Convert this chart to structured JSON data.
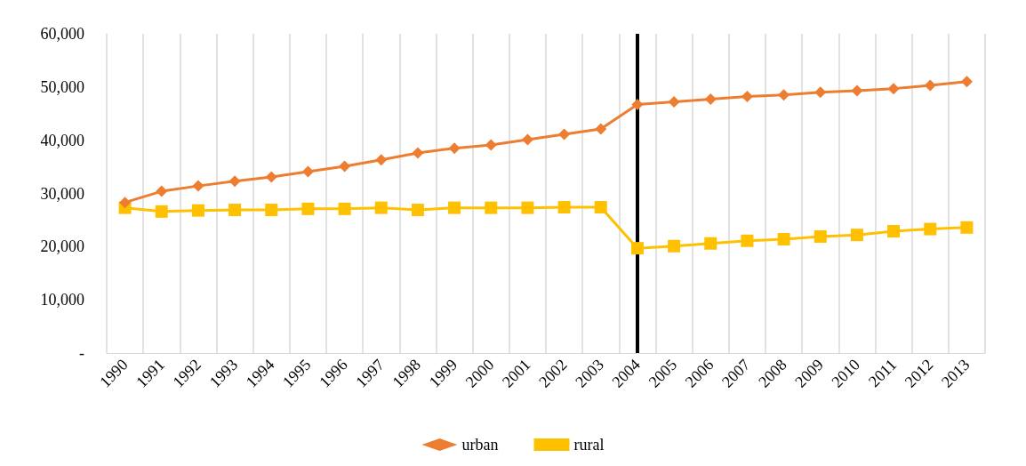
{
  "chart_data": {
    "type": "line",
    "categories": [
      "1990",
      "1991",
      "1992",
      "1993",
      "1994",
      "1995",
      "1996",
      "1997",
      "1998",
      "1999",
      "2000",
      "2001",
      "2002",
      "2003",
      "2004",
      "2005",
      "2006",
      "2007",
      "2008",
      "2009",
      "2010",
      "2011",
      "2012",
      "2013"
    ],
    "series": [
      {
        "name": "urban",
        "color": "#ed7d31",
        "marker": "diamond",
        "values": [
          28300,
          30400,
          31400,
          32300,
          33100,
          34100,
          35100,
          36300,
          37600,
          38500,
          39100,
          40100,
          41100,
          42100,
          46700,
          47200,
          47700,
          48200,
          48500,
          49000,
          49300,
          49700,
          50300,
          51000
        ]
      },
      {
        "name": "rural",
        "color": "#ffc000",
        "marker": "square",
        "values": [
          27300,
          26600,
          26800,
          26900,
          26900,
          27100,
          27100,
          27300,
          26900,
          27300,
          27300,
          27300,
          27400,
          27400,
          19700,
          20100,
          20600,
          21100,
          21400,
          21900,
          22200,
          22900,
          23300,
          23600
        ]
      }
    ],
    "ylim": [
      0,
      60000
    ],
    "yticks": [
      {
        "value": 0,
        "label": "-"
      },
      {
        "value": 10000,
        "label": "10,000"
      },
      {
        "value": 20000,
        "label": "20,000"
      },
      {
        "value": 30000,
        "label": "30,000"
      },
      {
        "value": 40000,
        "label": "40,000"
      },
      {
        "value": 50000,
        "label": "50,000"
      },
      {
        "value": 60000,
        "label": "60,000"
      }
    ],
    "ref_lines": [
      {
        "axis": "x",
        "value": "2004",
        "color": "#000000"
      }
    ],
    "grid": "x",
    "legend": "bottom",
    "line_style": "solid"
  }
}
